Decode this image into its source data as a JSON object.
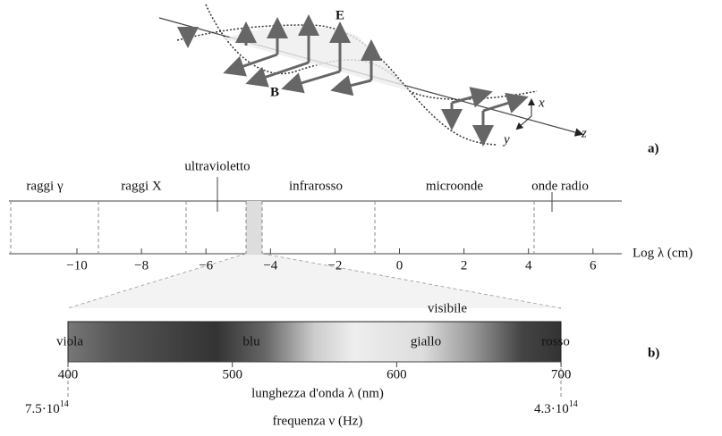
{
  "wave": {
    "e_label": "E",
    "b_label": "B",
    "x_label": "x",
    "y_label": "y",
    "z_label": "z",
    "panel": "a)"
  },
  "spectrum": {
    "regions": [
      "raggi γ",
      "raggi X",
      "ultravioletto",
      "infrarosso",
      "microonde",
      "onde radio"
    ],
    "ticks": [
      "−10",
      "−8",
      "−6",
      "−4",
      "−2",
      "0",
      "2",
      "4",
      "6"
    ],
    "axis_label": "Log λ (cm)",
    "panel": "b)"
  },
  "visible": {
    "title": "visibile",
    "colors": [
      "viola",
      "blu",
      "giallo",
      "rosso"
    ],
    "ticks": [
      "400",
      "500",
      "600",
      "700"
    ],
    "wavelength_label": "lunghezza d'onda λ (nm)",
    "freq_left": {
      "mantissa": "7.5·10",
      "exponent": "14"
    },
    "freq_right": {
      "mantissa": "4.3·10",
      "exponent": "14"
    },
    "frequency_label": "frequenza ν (Hz)"
  }
}
